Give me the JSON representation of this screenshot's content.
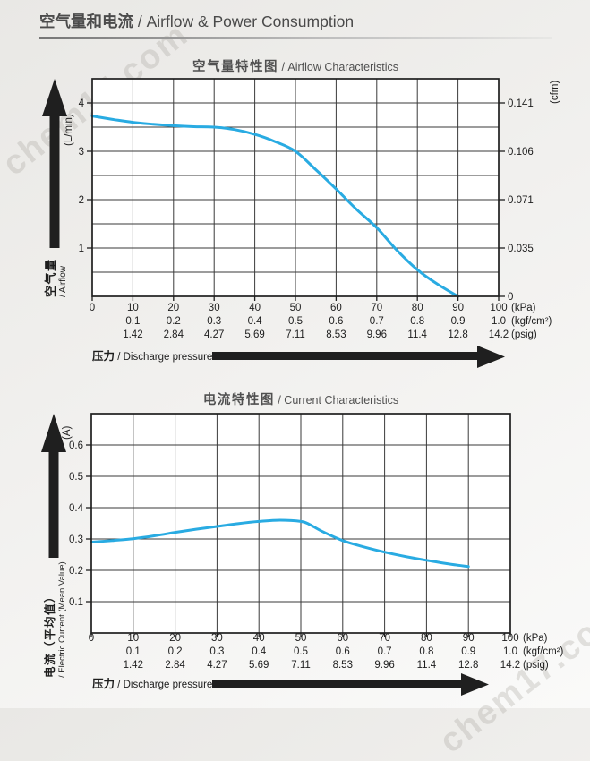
{
  "page": {
    "watermark": "chem17.com"
  },
  "header": {
    "title_zh": "空气量和电流",
    "title_en": " / Airflow & Power Consumption"
  },
  "pressure_axis": {
    "label_zh": "压力",
    "label_en": " / Discharge pressure",
    "ticks_kpa": [
      "0",
      "10",
      "20",
      "30",
      "40",
      "50",
      "60",
      "70",
      "80",
      "90",
      "100"
    ],
    "ticks_kgf": [
      "0.1",
      "0.2",
      "0.3",
      "0.4",
      "0.5",
      "0.6",
      "0.7",
      "0.8",
      "0.9",
      "1.0"
    ],
    "ticks_psig": [
      "1.42",
      "2.84",
      "4.27",
      "5.69",
      "7.11",
      "8.53",
      "9.96",
      "11.4",
      "12.8",
      "14.2"
    ],
    "unit_labels": [
      "(kPa)",
      "(kgf/cm²)",
      "(psig)"
    ]
  },
  "chart_data": [
    {
      "type": "line",
      "title_zh": "空气量特性图",
      "title_en": " / Airflow Characteristics",
      "xlabel": "压力 / Discharge pressure",
      "x_units": [
        "kPa",
        "kgf/cm²",
        "psig"
      ],
      "xlim": [
        0,
        100
      ],
      "x_grid_step": 10,
      "ylabel_zh": "空气量",
      "ylabel_en": "/ Airflow",
      "y_unit": "(L/min)",
      "ylim": [
        0,
        4.5
      ],
      "y_grid_step": 0.5,
      "grid": true,
      "y_ticks": [
        {
          "v": 4,
          "label": "4"
        },
        {
          "v": 3,
          "label": "3"
        },
        {
          "v": 2,
          "label": "2"
        },
        {
          "v": 1,
          "label": "1"
        }
      ],
      "right_axis": {
        "unit": "(cfm)",
        "ticks": [
          {
            "v": 4,
            "label": "0.141"
          },
          {
            "v": 3,
            "label": "0.106"
          },
          {
            "v": 2,
            "label": "0.071"
          },
          {
            "v": 1,
            "label": "0.035"
          },
          {
            "v": 0,
            "label": "0"
          }
        ]
      },
      "series": [
        {
          "name": "airflow",
          "color": "#29abe2",
          "points": [
            [
              0,
              3.73
            ],
            [
              5,
              3.66
            ],
            [
              10,
              3.6
            ],
            [
              15,
              3.56
            ],
            [
              20,
              3.53
            ],
            [
              25,
              3.51
            ],
            [
              30,
              3.5
            ],
            [
              35,
              3.45
            ],
            [
              40,
              3.35
            ],
            [
              45,
              3.2
            ],
            [
              50,
              3.0
            ],
            [
              55,
              2.62
            ],
            [
              60,
              2.22
            ],
            [
              65,
              1.8
            ],
            [
              70,
              1.42
            ],
            [
              75,
              0.95
            ],
            [
              80,
              0.55
            ],
            [
              85,
              0.25
            ],
            [
              90,
              0.0
            ]
          ]
        }
      ]
    },
    {
      "type": "line",
      "title_zh": "电流特性图",
      "title_en": " / Current Characteristics",
      "xlabel": "压力 / Discharge pressure",
      "x_units": [
        "kPa",
        "kgf/cm²",
        "psig"
      ],
      "xlim": [
        0,
        100
      ],
      "x_grid_step": 10,
      "ylabel_zh": "电流（平均值）",
      "ylabel_en": "/ Electric Current (Mean Value)",
      "y_unit": "(A)",
      "ylim": [
        0,
        0.7
      ],
      "y_grid_step": 0.1,
      "grid": true,
      "y_ticks": [
        {
          "v": 0.6,
          "label": "0.6"
        },
        {
          "v": 0.5,
          "label": "0.5"
        },
        {
          "v": 0.4,
          "label": "0.4"
        },
        {
          "v": 0.3,
          "label": "0.3"
        },
        {
          "v": 0.2,
          "label": "0.2"
        },
        {
          "v": 0.1,
          "label": "0.1"
        }
      ],
      "right_axis": null,
      "series": [
        {
          "name": "current",
          "color": "#29abe2",
          "points": [
            [
              0,
              0.29
            ],
            [
              5,
              0.295
            ],
            [
              10,
              0.301
            ],
            [
              15,
              0.31
            ],
            [
              20,
              0.321
            ],
            [
              25,
              0.331
            ],
            [
              30,
              0.34
            ],
            [
              35,
              0.349
            ],
            [
              40,
              0.356
            ],
            [
              45,
              0.36
            ],
            [
              50,
              0.356
            ],
            [
              52,
              0.347
            ],
            [
              55,
              0.325
            ],
            [
              60,
              0.295
            ],
            [
              65,
              0.275
            ],
            [
              70,
              0.258
            ],
            [
              75,
              0.244
            ],
            [
              80,
              0.232
            ],
            [
              85,
              0.221
            ],
            [
              90,
              0.212
            ]
          ]
        }
      ]
    }
  ]
}
